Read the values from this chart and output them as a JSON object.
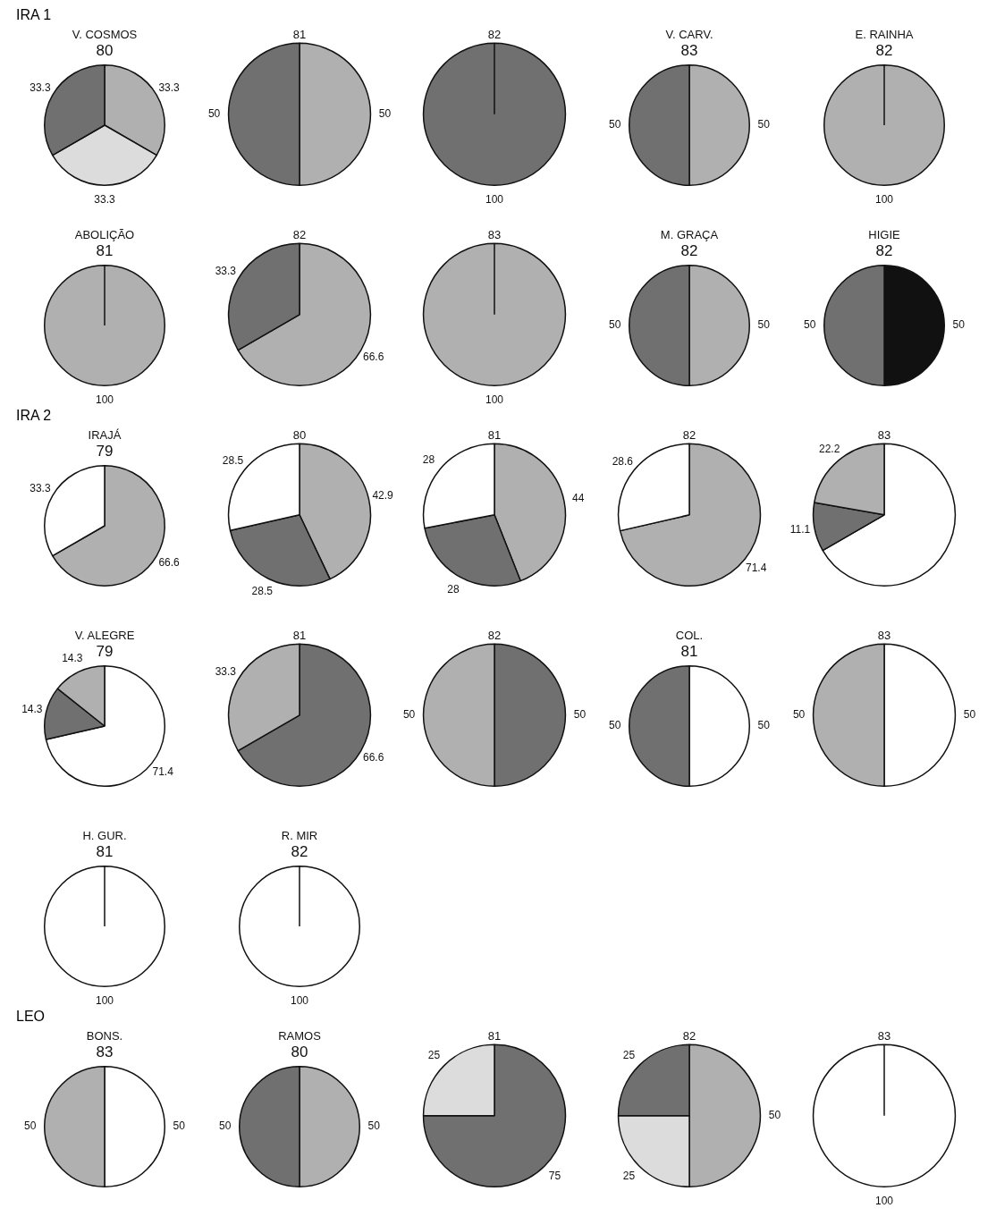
{
  "chart_data": [
    {
      "type": "pie",
      "annotations": [
        "IRA 1"
      ],
      "title": "V. COSMOS",
      "subtitle": "80",
      "categories": [
        null,
        null,
        null
      ],
      "values": [
        33.3,
        33.3,
        33.3
      ],
      "colors": [
        "#b0b0b0",
        "#dcdcdc",
        "#707070"
      ],
      "value_labels": [
        "33.3",
        "33.3",
        "33.3"
      ]
    },
    {
      "type": "pie",
      "title": "81",
      "categories": [
        null,
        null
      ],
      "values": [
        50,
        50
      ],
      "colors": [
        "#b0b0b0",
        "#707070"
      ],
      "value_labels": [
        "50",
        "50"
      ]
    },
    {
      "type": "pie",
      "title": "82",
      "categories": [
        null
      ],
      "values": [
        100
      ],
      "colors": [
        "#707070"
      ],
      "value_labels": [
        "100"
      ]
    },
    {
      "type": "pie",
      "title": "V. CARV.",
      "subtitle": "83",
      "categories": [
        null,
        null
      ],
      "values": [
        50,
        50
      ],
      "colors": [
        "#b0b0b0",
        "#707070"
      ],
      "value_labels": [
        "50",
        "50"
      ]
    },
    {
      "type": "pie",
      "title": "E. RAINHA",
      "subtitle": "82",
      "categories": [
        null
      ],
      "values": [
        100
      ],
      "colors": [
        "#b0b0b0"
      ],
      "value_labels": [
        "100"
      ]
    },
    {
      "type": "pie",
      "title": "ABOLIÇÃO",
      "subtitle": "81",
      "categories": [
        null
      ],
      "values": [
        100
      ],
      "colors": [
        "#b0b0b0"
      ],
      "value_labels": [
        "100"
      ]
    },
    {
      "type": "pie",
      "title": "82",
      "categories": [
        null,
        null
      ],
      "values": [
        66.6,
        33.3
      ],
      "colors": [
        "#b0b0b0",
        "#707070"
      ],
      "value_labels": [
        "66.6",
        "33.3"
      ]
    },
    {
      "type": "pie",
      "title": "83",
      "categories": [
        null
      ],
      "values": [
        100
      ],
      "colors": [
        "#b0b0b0"
      ],
      "value_labels": [
        "100"
      ]
    },
    {
      "type": "pie",
      "title": "M. GRAÇA",
      "subtitle": "82",
      "categories": [
        null,
        null
      ],
      "values": [
        50,
        50
      ],
      "colors": [
        "#b0b0b0",
        "#707070"
      ],
      "value_labels": [
        "50",
        "50"
      ]
    },
    {
      "type": "pie",
      "title": "HIGIE",
      "subtitle": "82",
      "categories": [
        null,
        null
      ],
      "values": [
        50,
        50
      ],
      "colors": [
        "#111111",
        "#707070"
      ],
      "value_labels": [
        "50",
        "50"
      ]
    },
    {
      "type": "pie",
      "annotations": [
        "IRA 2"
      ],
      "title": "IRAJÁ",
      "subtitle": "79",
      "categories": [
        null,
        null
      ],
      "values": [
        66.6,
        33.3
      ],
      "colors": [
        "#b0b0b0",
        "#ffffff"
      ],
      "value_labels": [
        "66.6",
        "33.3"
      ]
    },
    {
      "type": "pie",
      "title": "80",
      "categories": [
        null,
        null,
        null
      ],
      "values": [
        42.9,
        28.5,
        28.5
      ],
      "colors": [
        "#b0b0b0",
        "#707070",
        "#ffffff"
      ],
      "value_labels": [
        "42.9",
        "28.5",
        "28.5"
      ]
    },
    {
      "type": "pie",
      "title": "81",
      "categories": [
        null,
        null,
        null
      ],
      "values": [
        44,
        28,
        28
      ],
      "colors": [
        "#b0b0b0",
        "#707070",
        "#ffffff"
      ],
      "value_labels": [
        "44",
        "28",
        "28"
      ]
    },
    {
      "type": "pie",
      "title": "82",
      "categories": [
        null,
        null
      ],
      "values": [
        71.4,
        28.6
      ],
      "colors": [
        "#b0b0b0",
        "#ffffff"
      ],
      "value_labels": [
        "71.4",
        "28.6"
      ]
    },
    {
      "type": "pie",
      "title": "83",
      "categories": [
        null,
        null,
        null
      ],
      "values": [
        66.6,
        11.1,
        22.2
      ],
      "colors": [
        "#ffffff",
        "#707070",
        "#b0b0b0"
      ],
      "value_labels": [
        null,
        "11.1",
        "22.2"
      ]
    },
    {
      "type": "pie",
      "title": "V. ALEGRE",
      "subtitle": "79",
      "categories": [
        null,
        null,
        null
      ],
      "values": [
        71.4,
        14.3,
        14.3
      ],
      "colors": [
        "#ffffff",
        "#707070",
        "#b0b0b0"
      ],
      "value_labels": [
        "71.4",
        "14.3",
        "14.3"
      ]
    },
    {
      "type": "pie",
      "title": "81",
      "categories": [
        null,
        null
      ],
      "values": [
        66.6,
        33.3
      ],
      "colors": [
        "#707070",
        "#b0b0b0"
      ],
      "value_labels": [
        "66.6",
        "33.3"
      ]
    },
    {
      "type": "pie",
      "title": "82",
      "categories": [
        null,
        null
      ],
      "values": [
        50,
        50
      ],
      "colors": [
        "#707070",
        "#b0b0b0"
      ],
      "value_labels": [
        "50",
        "50"
      ]
    },
    {
      "type": "pie",
      "title": "COL.",
      "subtitle": "81",
      "categories": [
        null,
        null
      ],
      "values": [
        50,
        50
      ],
      "colors": [
        "#ffffff",
        "#707070"
      ],
      "value_labels": [
        "50",
        "50"
      ]
    },
    {
      "type": "pie",
      "title": "83",
      "categories": [
        null,
        null
      ],
      "values": [
        50,
        50
      ],
      "colors": [
        "#ffffff",
        "#b0b0b0"
      ],
      "value_labels": [
        "50",
        "50"
      ]
    },
    {
      "type": "pie",
      "title": "H. GUR.",
      "subtitle": "81",
      "categories": [
        null
      ],
      "values": [
        100
      ],
      "colors": [
        "#ffffff"
      ],
      "value_labels": [
        "100"
      ]
    },
    {
      "type": "pie",
      "title": "R. MIR",
      "subtitle": "82",
      "categories": [
        null
      ],
      "values": [
        100
      ],
      "colors": [
        "#ffffff"
      ],
      "value_labels": [
        "100"
      ]
    },
    {
      "type": "pie",
      "annotations": [
        "LEO"
      ],
      "title": "BONS.",
      "subtitle": "83",
      "categories": [
        null,
        null
      ],
      "values": [
        50,
        50
      ],
      "colors": [
        "#ffffff",
        "#b0b0b0"
      ],
      "value_labels": [
        "50",
        "50"
      ]
    },
    {
      "type": "pie",
      "title": "RAMOS",
      "subtitle": "80",
      "categories": [
        null,
        null
      ],
      "values": [
        50,
        50
      ],
      "colors": [
        "#b0b0b0",
        "#707070"
      ],
      "value_labels": [
        "50",
        "50"
      ]
    },
    {
      "type": "pie",
      "title": "81",
      "categories": [
        null,
        null
      ],
      "values": [
        75,
        25
      ],
      "colors": [
        "#707070",
        "#dcdcdc"
      ],
      "value_labels": [
        "75",
        "25"
      ]
    },
    {
      "type": "pie",
      "title": "82",
      "categories": [
        null,
        null,
        null
      ],
      "values": [
        50,
        25,
        25
      ],
      "colors": [
        "#b0b0b0",
        "#dcdcdc",
        "#707070"
      ],
      "value_labels": [
        "50",
        "25",
        "25"
      ]
    },
    {
      "type": "pie",
      "title": "83",
      "categories": [
        null
      ],
      "values": [
        100
      ],
      "colors": [
        "#ffffff"
      ],
      "value_labels": [
        "100"
      ]
    }
  ]
}
